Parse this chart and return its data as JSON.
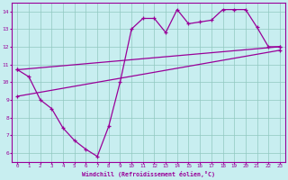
{
  "bg_color": "#c8eef0",
  "line_color": "#990099",
  "xlim": [
    -0.5,
    23.5
  ],
  "ylim": [
    5.5,
    14.5
  ],
  "xticks": [
    0,
    1,
    2,
    3,
    4,
    5,
    6,
    7,
    8,
    9,
    10,
    11,
    12,
    13,
    14,
    15,
    16,
    17,
    18,
    19,
    20,
    21,
    22,
    23
  ],
  "yticks": [
    6,
    7,
    8,
    9,
    10,
    11,
    12,
    13,
    14
  ],
  "xlabel": "Windchill (Refroidissement éolien,°C)",
  "line1_x": [
    0,
    1,
    2,
    3,
    4,
    5,
    6,
    7,
    8,
    9,
    10,
    11,
    12,
    13,
    14,
    15,
    16,
    17,
    18,
    19,
    20,
    21,
    22,
    23
  ],
  "line1_y": [
    10.7,
    10.3,
    9.0,
    8.5,
    7.4,
    6.7,
    6.2,
    5.8,
    7.5,
    10.0,
    13.0,
    13.6,
    13.6,
    12.8,
    14.1,
    13.3,
    13.4,
    13.5,
    14.1,
    14.1,
    14.1,
    13.1,
    12.0,
    12.0
  ],
  "line2_x": [
    0,
    23
  ],
  "line2_y": [
    10.7,
    12.0
  ],
  "line3_x": [
    0,
    23
  ],
  "line3_y": [
    9.2,
    11.8
  ],
  "marker": "+"
}
